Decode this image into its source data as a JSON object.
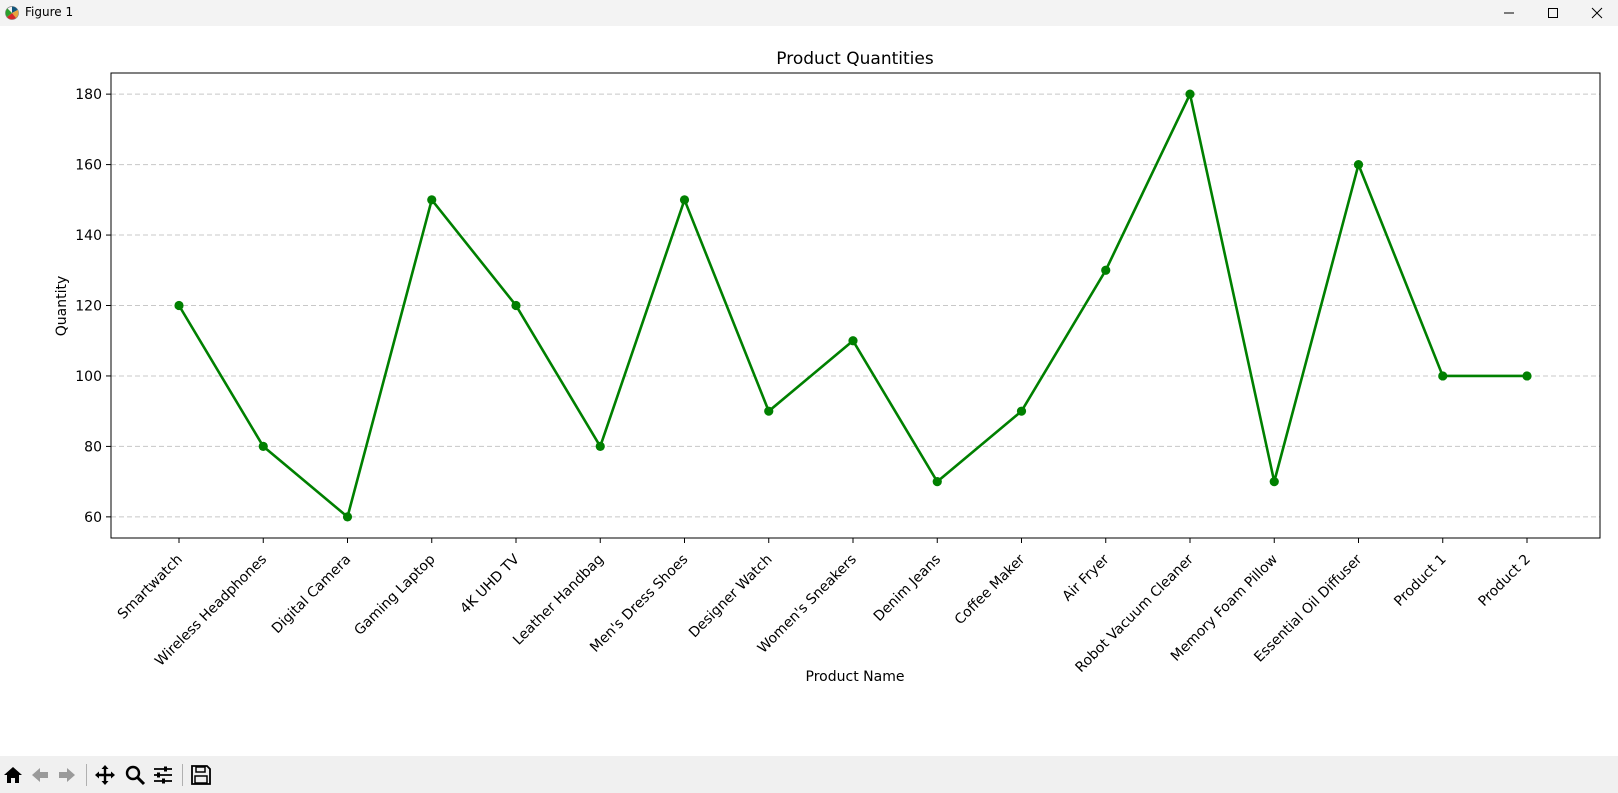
{
  "window": {
    "title": "Figure 1",
    "controls": [
      "minimize-icon",
      "maximize-icon",
      "close-icon"
    ]
  },
  "toolbar": {
    "tools": [
      "home-icon",
      "back-arrow-icon",
      "forward-arrow-icon",
      "pan-icon",
      "zoom-icon",
      "configure-subplots-icon",
      "save-icon"
    ]
  },
  "colors": {
    "line": "#008000",
    "grid": "#c8c8c8"
  },
  "chart_data": {
    "type": "line",
    "title": "Product Quantities",
    "xlabel": "Product Name",
    "ylabel": "Quantity",
    "categories": [
      "Smartwatch",
      "Wireless Headphones",
      "Digital Camera",
      "Gaming Laptop",
      "4K UHD TV",
      "Leather Handbag",
      "Men's Dress Shoes",
      "Designer Watch",
      "Women's Sneakers",
      "Denim Jeans",
      "Coffee Maker",
      "Air Fryer",
      "Robot Vacuum Cleaner",
      "Memory Foam Pillow",
      "Essential Oil Diffuser",
      "Product 1",
      "Product 2"
    ],
    "values": [
      120,
      80,
      60,
      150,
      120,
      80,
      150,
      90,
      110,
      70,
      90,
      130,
      180,
      70,
      160,
      100,
      100
    ],
    "yticks": [
      60,
      80,
      100,
      120,
      140,
      160,
      180
    ],
    "ylim": [
      54,
      186
    ],
    "grid": "y-dashed",
    "marker": "circle"
  }
}
